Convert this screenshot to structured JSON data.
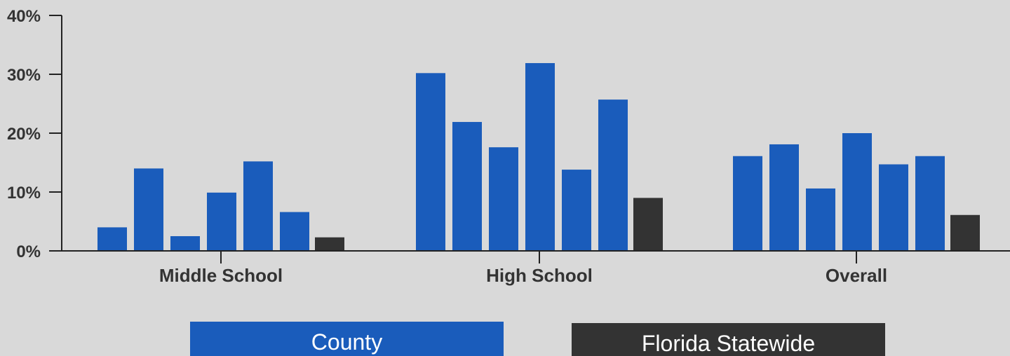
{
  "chart_data": {
    "type": "bar",
    "categories": [
      "Middle School",
      "High School",
      "Overall"
    ],
    "ylim": [
      0,
      40
    ],
    "y_ticks": [
      "0%",
      "10%",
      "20%",
      "30%",
      "40%"
    ],
    "grid": false,
    "legend_position": "bottom",
    "series": [
      {
        "name": "County",
        "color": "#1a5cbb",
        "group": "county",
        "values": [
          4,
          30.2,
          16.1
        ]
      },
      {
        "name": "",
        "color": "#1a5cbb",
        "group": "county",
        "values": [
          14,
          21.9,
          18.1
        ]
      },
      {
        "name": "",
        "color": "#1a5cbb",
        "group": "county",
        "values": [
          2.5,
          17.6,
          10.6
        ]
      },
      {
        "name": "",
        "color": "#1a5cbb",
        "group": "county",
        "values": [
          9.9,
          31.9,
          20
        ]
      },
      {
        "name": "",
        "color": "#1a5cbb",
        "group": "county",
        "values": [
          15.2,
          13.8,
          14.7
        ]
      },
      {
        "name": "",
        "color": "#1a5cbb",
        "group": "county",
        "values": [
          6.6,
          25.7,
          16.1
        ]
      },
      {
        "name": "Florida Statewide",
        "color": "#333333",
        "group": "statewide",
        "values": [
          2.3,
          9,
          6.1
        ]
      }
    ],
    "legend": [
      {
        "label": "County",
        "color": "#1a5cbb"
      },
      {
        "label": "Florida Statewide",
        "color": "#333333"
      }
    ]
  }
}
